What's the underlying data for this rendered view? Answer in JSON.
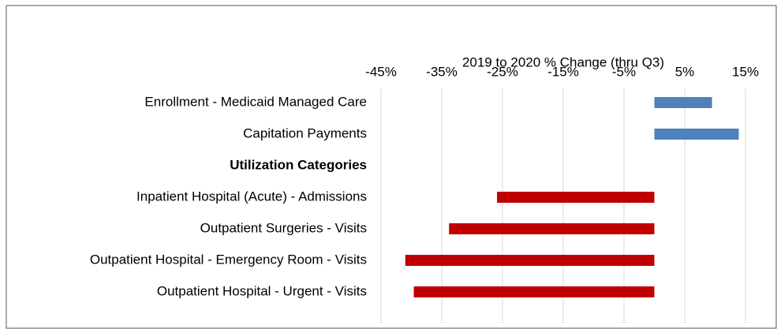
{
  "chart_data": {
    "type": "bar",
    "orientation": "horizontal",
    "x_axis_label": "2019 to 2020 % Change (thru Q3)",
    "categories": [
      "Enrollment - Medicaid Managed Care",
      "Capitation Payments",
      "Utilization Categories",
      "Inpatient Hospital (Acute) - Admissions",
      "Outpatient Surgeries - Visits",
      "Outpatient Hospital - Emergency Room - Visits",
      "Outpatient Hospital - Urgent - Visits"
    ],
    "values": [
      9.5,
      13.9,
      null,
      -25.9,
      -33.8,
      -41.0,
      -39.6
    ],
    "colors": [
      "#4f81bd",
      "#4f81bd",
      null,
      "#c00000",
      "#c00000",
      "#c00000",
      "#c00000"
    ],
    "bold_categories": [
      "Utilization Categories"
    ],
    "xlim": [
      -45,
      15
    ],
    "xticks": [
      {
        "value": -45,
        "label": "-45%"
      },
      {
        "value": -35,
        "label": "-35%"
      },
      {
        "value": -25,
        "label": "-25%"
      },
      {
        "value": -15,
        "label": "-15%"
      },
      {
        "value": -5,
        "label": "-5%"
      },
      {
        "value": 5,
        "label": "5%"
      },
      {
        "value": 15,
        "label": "15%"
      }
    ],
    "grid": true,
    "x_axis_position": "top"
  }
}
